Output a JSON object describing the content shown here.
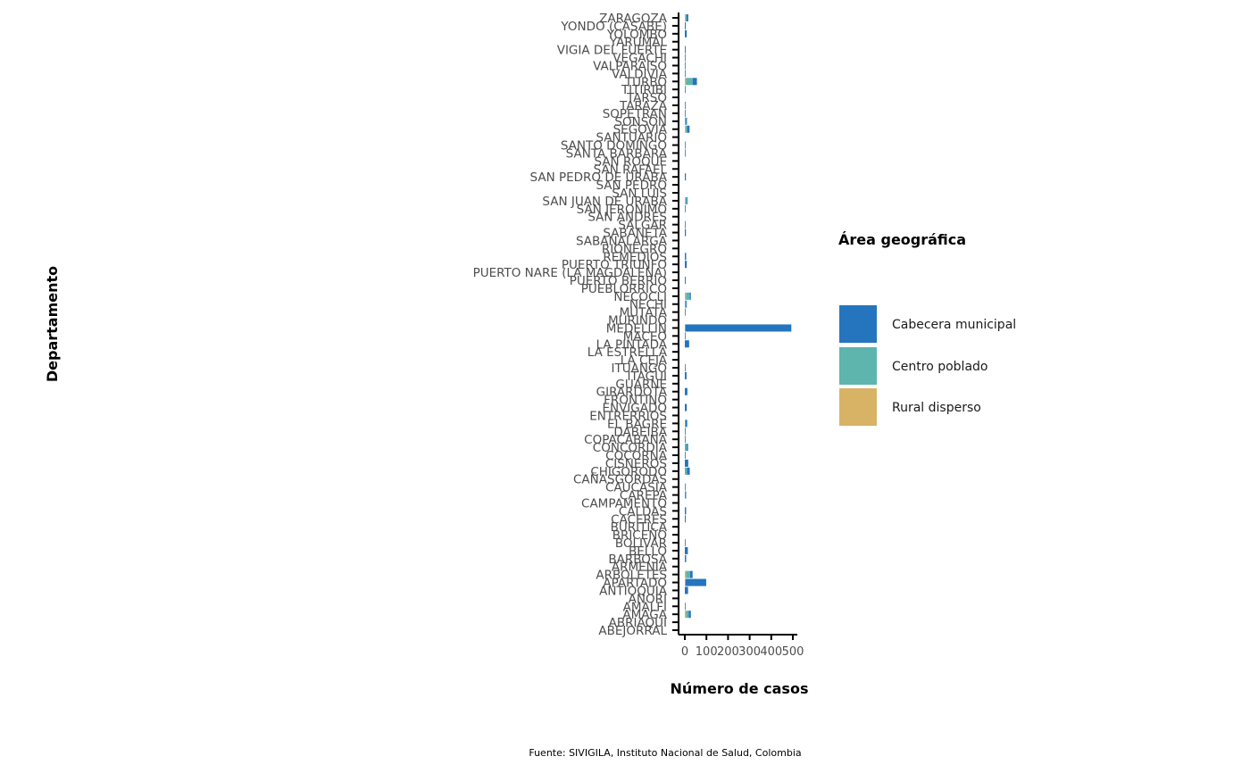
{
  "colors": {
    "Cabecera municipal": "#2475BD",
    "Centro poblado": "#5DB5AE",
    "Rural disperso": "#D8B365",
    "axis": "#000000",
    "tick_text": "#4d4d4d"
  },
  "caption": "Fuente: SIVIGILA, Instituto Nacional de Salud, Colombia",
  "chart_data": {
    "type": "bar",
    "orientation": "horizontal",
    "stacked": true,
    "xlabel": "Número de casos",
    "ylabel": "Departamento",
    "xlim": [
      0,
      520
    ],
    "xticks": [
      0,
      100,
      200,
      300,
      400,
      500
    ],
    "grid": false,
    "legend": {
      "title": "Área geográfica",
      "position": "right",
      "entries": [
        "Cabecera municipal",
        "Centro poblado",
        "Rural disperso"
      ]
    },
    "categories": [
      "ABEJORRAL",
      "ABRIAQUI",
      "AMAGA",
      "AMALFI",
      "ANORI",
      "ANTIOQUIA",
      "APARTADO",
      "ARBOLETES",
      "ARMENIA",
      "BARBOSA",
      "BELLO",
      "BOLIVAR",
      "BRICEÑO",
      "BURITICA",
      "CACERES",
      "CALDAS",
      "CAMPAMENTO",
      "CAREPA",
      "CAUCASIA",
      "CAÑASGORDAS",
      "CHIGORODO",
      "CISNEROS",
      "COCORNA",
      "CONCORDIA",
      "COPACABANA",
      "DABEIBA",
      "EL BAGRE",
      "ENTRERRIOS",
      "ENVIGADO",
      "FRONTINO",
      "GIRARDOTA",
      "GUARNE",
      "ITAGUI",
      "ITUANGO",
      "LA CEJA",
      "LA ESTRELLA",
      "LA PINTADA",
      "MACEO",
      "MEDELLIN",
      "MURINDO",
      "MUTATA",
      "NECHI",
      "NECOCLI",
      "PUEBLORRICO",
      "PUERTO BERRIO",
      "PUERTO NARE (LA MAGDALENA)",
      "PUERTO TRIUNFO",
      "REMEDIOS",
      "RIONEGRO",
      "SABANALARGA",
      "SABANETA",
      "SALGAR",
      "SAN ANDRES",
      "SAN JERONIMO",
      "SAN JUAN DE URABA",
      "SAN LUIS",
      "SAN PEDRO",
      "SAN PEDRO DE URABA",
      "SAN RAFAEL",
      "SAN ROQUE",
      "SANTA BARBARA",
      "SANTO DOMINGO",
      "SANTUARIO",
      "SEGOVIA",
      "SONSON",
      "SOPETRAN",
      "TARAZA",
      "TARSO",
      "TITIRIBI",
      "TURBO",
      "VALDIVIA",
      "VALPARAISO",
      "VEGACHI",
      "VIGIA DEL FUERTE",
      "YARUMAL",
      "YOLOMBO",
      "YONDO (CASABE)",
      "ZARAGOZA"
    ],
    "series": [
      {
        "name": "Cabecera municipal",
        "values": [
          0,
          0,
          10,
          2,
          0,
          15,
          95,
          12,
          0,
          6,
          14,
          1,
          0,
          0,
          4,
          6,
          0,
          4,
          3,
          0,
          13,
          16,
          1,
          6,
          2,
          2,
          8,
          0,
          9,
          0,
          12,
          0,
          8,
          1,
          0,
          0,
          20,
          2,
          490,
          0,
          2,
          4,
          5,
          0,
          4,
          0,
          9,
          6,
          0,
          0,
          5,
          1,
          0,
          2,
          4,
          0,
          0,
          5,
          0,
          0,
          1,
          1,
          0,
          12,
          4,
          1,
          1,
          0,
          1,
          20,
          2,
          1,
          2,
          2,
          0,
          9,
          4,
          8
        ]
      },
      {
        "name": "Centro poblado",
        "values": [
          0,
          0,
          12,
          0,
          0,
          0,
          2,
          18,
          0,
          0,
          0,
          0,
          0,
          0,
          0,
          0,
          0,
          2,
          0,
          0,
          10,
          0,
          0,
          9,
          0,
          0,
          1,
          0,
          0,
          0,
          0,
          0,
          0,
          0,
          0,
          0,
          0,
          0,
          3,
          0,
          0,
          5,
          18,
          0,
          0,
          0,
          0,
          0,
          0,
          0,
          0,
          0,
          0,
          0,
          5,
          0,
          0,
          0,
          0,
          0,
          0,
          0,
          0,
          5,
          6,
          0,
          0,
          0,
          0,
          30,
          0,
          0,
          0,
          1,
          0,
          0,
          0,
          4
        ]
      },
      {
        "name": "Rural disperso",
        "values": [
          0,
          0,
          6,
          0,
          0,
          0,
          2,
          6,
          0,
          0,
          0,
          0,
          0,
          0,
          0,
          0,
          0,
          0,
          0,
          0,
          0,
          0,
          0,
          0,
          0,
          0,
          2,
          0,
          0,
          0,
          0,
          0,
          0,
          0,
          0,
          0,
          0,
          0,
          0,
          0,
          0,
          0,
          5,
          0,
          0,
          0,
          0,
          0,
          0,
          0,
          0,
          0,
          0,
          0,
          3,
          0,
          0,
          0,
          0,
          0,
          0,
          0,
          0,
          5,
          0,
          0,
          0,
          0,
          0,
          6,
          0,
          0,
          0,
          0,
          0,
          0,
          0,
          4
        ]
      }
    ]
  }
}
